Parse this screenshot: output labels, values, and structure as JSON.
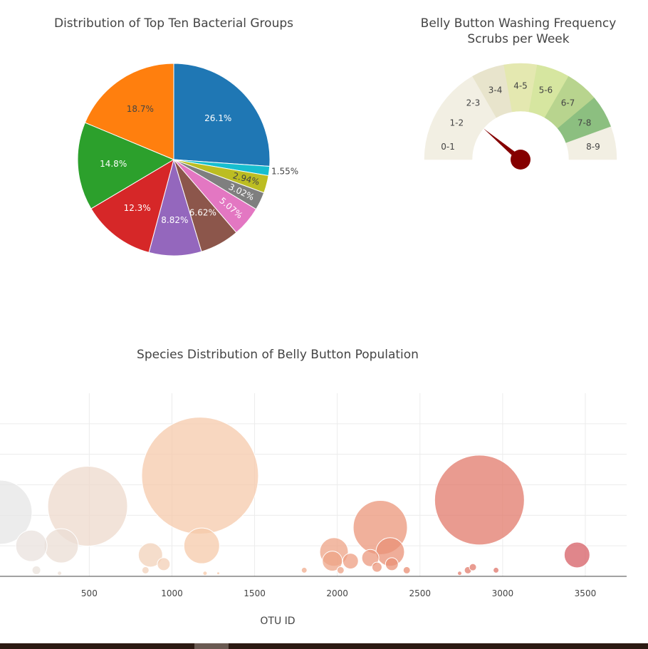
{
  "colors": {
    "pie": [
      "#1f77b4",
      "#ff7f0e",
      "#2ca02c",
      "#d62728",
      "#9467bd",
      "#8c564b",
      "#e377c2",
      "#7f7f7f",
      "#bcbd22",
      "#17becf"
    ],
    "gauge_bands": [
      "#f2efe3",
      "#f2efe3",
      "#f2efe3",
      "#e8e4cc",
      "#e4e8b0",
      "#d6e6a0",
      "#b8d48e",
      "#8cbf80",
      "#f2efe3"
    ],
    "needle": "#850000",
    "bubble_scale": [
      "#e6e6e6",
      "#f7c9a8",
      "#e88a70",
      "#d05060"
    ]
  },
  "pie_chart": {
    "title": "Distribution of Top Ten Bacterial Groups",
    "chart_data": {
      "type": "pie",
      "slices": [
        {
          "label": "26.1%",
          "value": 26.1
        },
        {
          "label": "1.55%",
          "value": 1.55
        },
        {
          "label": "2.94%",
          "value": 2.94
        },
        {
          "label": "3.02%",
          "value": 3.02
        },
        {
          "label": "5.07%",
          "value": 5.07
        },
        {
          "label": "6.62%",
          "value": 6.62
        },
        {
          "label": "8.82%",
          "value": 8.82
        },
        {
          "label": "12.3%",
          "value": 12.3
        },
        {
          "label": "14.8%",
          "value": 14.8
        },
        {
          "label": "18.7%",
          "value": 18.7
        }
      ],
      "slice_colors": [
        0,
        9,
        8,
        7,
        6,
        5,
        4,
        3,
        2,
        1
      ]
    }
  },
  "gauge_chart": {
    "title_line1": "Belly Button Washing Frequency",
    "title_line2": "Scrubs per Week",
    "chart_data": {
      "type": "gauge",
      "range": [
        0,
        9
      ],
      "bands": [
        "0-1",
        "1-2",
        "2-3",
        "3-4",
        "4-5",
        "5-6",
        "6-7",
        "7-8",
        "8-9"
      ],
      "value": 2
    }
  },
  "bubble_chart": {
    "title": "Species Distribution of Belly Button Population",
    "xlabel": "OTU ID",
    "chart_data": {
      "type": "scatter",
      "xlim": [
        -40,
        3750
      ],
      "ylim": [
        0,
        60
      ],
      "x_ticks": [
        500,
        1000,
        1500,
        2000,
        2500,
        3000,
        3500
      ],
      "points": [
        {
          "x": -40,
          "y": 21,
          "size": 45
        },
        {
          "x": 150,
          "y": 10,
          "size": 22
        },
        {
          "x": 330,
          "y": 10,
          "size": 24
        },
        {
          "x": 490,
          "y": 23,
          "size": 56
        },
        {
          "x": 180,
          "y": 2,
          "size": 6
        },
        {
          "x": 320,
          "y": 1,
          "size": 3
        },
        {
          "x": 1170,
          "y": 33,
          "size": 82
        },
        {
          "x": 1180,
          "y": 10,
          "size": 25
        },
        {
          "x": 870,
          "y": 7,
          "size": 17
        },
        {
          "x": 950,
          "y": 4,
          "size": 9
        },
        {
          "x": 840,
          "y": 2,
          "size": 5
        },
        {
          "x": 1200,
          "y": 1,
          "size": 3
        },
        {
          "x": 1280,
          "y": 1,
          "size": 2
        },
        {
          "x": 1800,
          "y": 2,
          "size": 4
        },
        {
          "x": 1980,
          "y": 8,
          "size": 20
        },
        {
          "x": 1970,
          "y": 5,
          "size": 14
        },
        {
          "x": 2080,
          "y": 5,
          "size": 11
        },
        {
          "x": 2020,
          "y": 2,
          "size": 5
        },
        {
          "x": 2260,
          "y": 16,
          "size": 38
        },
        {
          "x": 2320,
          "y": 8,
          "size": 20
        },
        {
          "x": 2200,
          "y": 6,
          "size": 12
        },
        {
          "x": 2240,
          "y": 3,
          "size": 7
        },
        {
          "x": 2330,
          "y": 4,
          "size": 9
        },
        {
          "x": 2420,
          "y": 2,
          "size": 5
        },
        {
          "x": 2860,
          "y": 25,
          "size": 63
        },
        {
          "x": 2790,
          "y": 2,
          "size": 5
        },
        {
          "x": 2820,
          "y": 3,
          "size": 5
        },
        {
          "x": 2740,
          "y": 1,
          "size": 3
        },
        {
          "x": 2960,
          "y": 2,
          "size": 4
        },
        {
          "x": 3450,
          "y": 7,
          "size": 18
        }
      ]
    }
  }
}
